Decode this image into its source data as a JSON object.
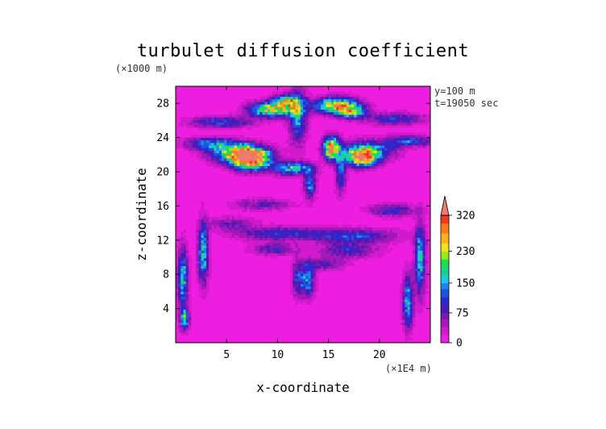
{
  "chart_data": {
    "type": "heatmap",
    "title": "turbulet diffusion coefficient",
    "xlabel": "x-coordinate",
    "ylabel": "z-coordinate",
    "x_unit": "(×1E4 m)",
    "y_unit": "(×1000 m)",
    "xlim": [
      0,
      25
    ],
    "ylim": [
      0,
      30
    ],
    "xticks": [
      5,
      10,
      15,
      20
    ],
    "yticks": [
      4,
      8,
      12,
      16,
      20,
      24,
      28
    ],
    "annotations": [
      "y=100  m",
      "t=19050 sec"
    ],
    "colorbar": {
      "tick_values": [
        0,
        75,
        150,
        230,
        320
      ],
      "tick_labels": [
        "0",
        "75",
        "150",
        "230",
        "320"
      ],
      "levels": [
        0,
        20,
        40,
        60,
        75,
        95,
        115,
        135,
        150,
        170,
        190,
        210,
        230,
        250,
        275,
        300,
        320
      ],
      "colors": [
        "#ee1ee0",
        "#d01acc",
        "#a318b8",
        "#7a18b0",
        "#4c18b8",
        "#2a2ad0",
        "#1f53e0",
        "#1e86f0",
        "#1fc6e6",
        "#18d28c",
        "#1ee04a",
        "#9ee81c",
        "#f2e21e",
        "#ffb21e",
        "#ff7a1e",
        "#f23a1e",
        "#f07a6e"
      ],
      "extend": "max"
    },
    "background_value": 5,
    "features": [
      {
        "x": 7.3,
        "z": 21.5,
        "sx": 1.3,
        "sz": 0.85,
        "peak": 320
      },
      {
        "x": 6.1,
        "z": 22.2,
        "sx": 1.9,
        "sz": 0.75,
        "peak": 185
      },
      {
        "x": 15.3,
        "z": 22.8,
        "sx": 0.55,
        "sz": 0.9,
        "peak": 300
      },
      {
        "x": 18.3,
        "z": 21.6,
        "sx": 1.0,
        "sz": 0.7,
        "peak": 255
      },
      {
        "x": 18.8,
        "z": 22.5,
        "sx": 1.8,
        "sz": 0.8,
        "peak": 160
      },
      {
        "x": 9.5,
        "z": 27.3,
        "sx": 1.6,
        "sz": 0.6,
        "peak": 235
      },
      {
        "x": 10.8,
        "z": 28.3,
        "sx": 0.9,
        "sz": 0.5,
        "peak": 190
      },
      {
        "x": 15.8,
        "z": 27.8,
        "sx": 1.5,
        "sz": 0.65,
        "peak": 240
      },
      {
        "x": 17.3,
        "z": 27.0,
        "sx": 1.0,
        "sz": 0.5,
        "peak": 170
      },
      {
        "x": 12.0,
        "z": 26.5,
        "sx": 0.6,
        "sz": 2.2,
        "peak": 140
      },
      {
        "x": 4.5,
        "z": 25.8,
        "sx": 2.2,
        "sz": 0.45,
        "peak": 110
      },
      {
        "x": 21.5,
        "z": 26.2,
        "sx": 2.0,
        "sz": 0.5,
        "peak": 100
      },
      {
        "x": 3.5,
        "z": 23.3,
        "sx": 1.8,
        "sz": 0.5,
        "peak": 130
      },
      {
        "x": 23.0,
        "z": 23.6,
        "sx": 1.6,
        "sz": 0.45,
        "peak": 115
      },
      {
        "x": 11.5,
        "z": 20.4,
        "sx": 1.3,
        "sz": 0.55,
        "peak": 170
      },
      {
        "x": 13.2,
        "z": 18.5,
        "sx": 0.4,
        "sz": 1.2,
        "peak": 130
      },
      {
        "x": 16.2,
        "z": 19.8,
        "sx": 0.35,
        "sz": 1.6,
        "peak": 120
      },
      {
        "x": 10.0,
        "z": 12.8,
        "sx": 3.0,
        "sz": 0.55,
        "peak": 95
      },
      {
        "x": 17.5,
        "z": 12.5,
        "sx": 3.0,
        "sz": 0.6,
        "peak": 105
      },
      {
        "x": 9.5,
        "z": 11.0,
        "sx": 1.5,
        "sz": 0.5,
        "peak": 85
      },
      {
        "x": 17.0,
        "z": 10.8,
        "sx": 2.0,
        "sz": 0.6,
        "peak": 90
      },
      {
        "x": 2.7,
        "z": 10.5,
        "sx": 0.35,
        "sz": 2.5,
        "peak": 170
      },
      {
        "x": 0.7,
        "z": 7.5,
        "sx": 0.35,
        "sz": 2.5,
        "peak": 160
      },
      {
        "x": 0.9,
        "z": 2.7,
        "sx": 0.3,
        "sz": 0.8,
        "peak": 175
      },
      {
        "x": 24.0,
        "z": 9.8,
        "sx": 0.35,
        "sz": 2.8,
        "peak": 170
      },
      {
        "x": 22.8,
        "z": 4.8,
        "sx": 0.35,
        "sz": 2.2,
        "peak": 155
      },
      {
        "x": 13.0,
        "z": 7.3,
        "sx": 0.45,
        "sz": 1.3,
        "peak": 140
      },
      {
        "x": 12.0,
        "z": 7.5,
        "sx": 0.4,
        "sz": 1.5,
        "peak": 100
      },
      {
        "x": 14.5,
        "z": 9.2,
        "sx": 1.4,
        "sz": 0.5,
        "peak": 80
      },
      {
        "x": 21.3,
        "z": 15.5,
        "sx": 1.6,
        "sz": 0.5,
        "peak": 95
      },
      {
        "x": 8.5,
        "z": 16.2,
        "sx": 2.0,
        "sz": 0.45,
        "peak": 75
      },
      {
        "x": 5.5,
        "z": 14.0,
        "sx": 1.5,
        "sz": 0.5,
        "peak": 70
      }
    ]
  }
}
